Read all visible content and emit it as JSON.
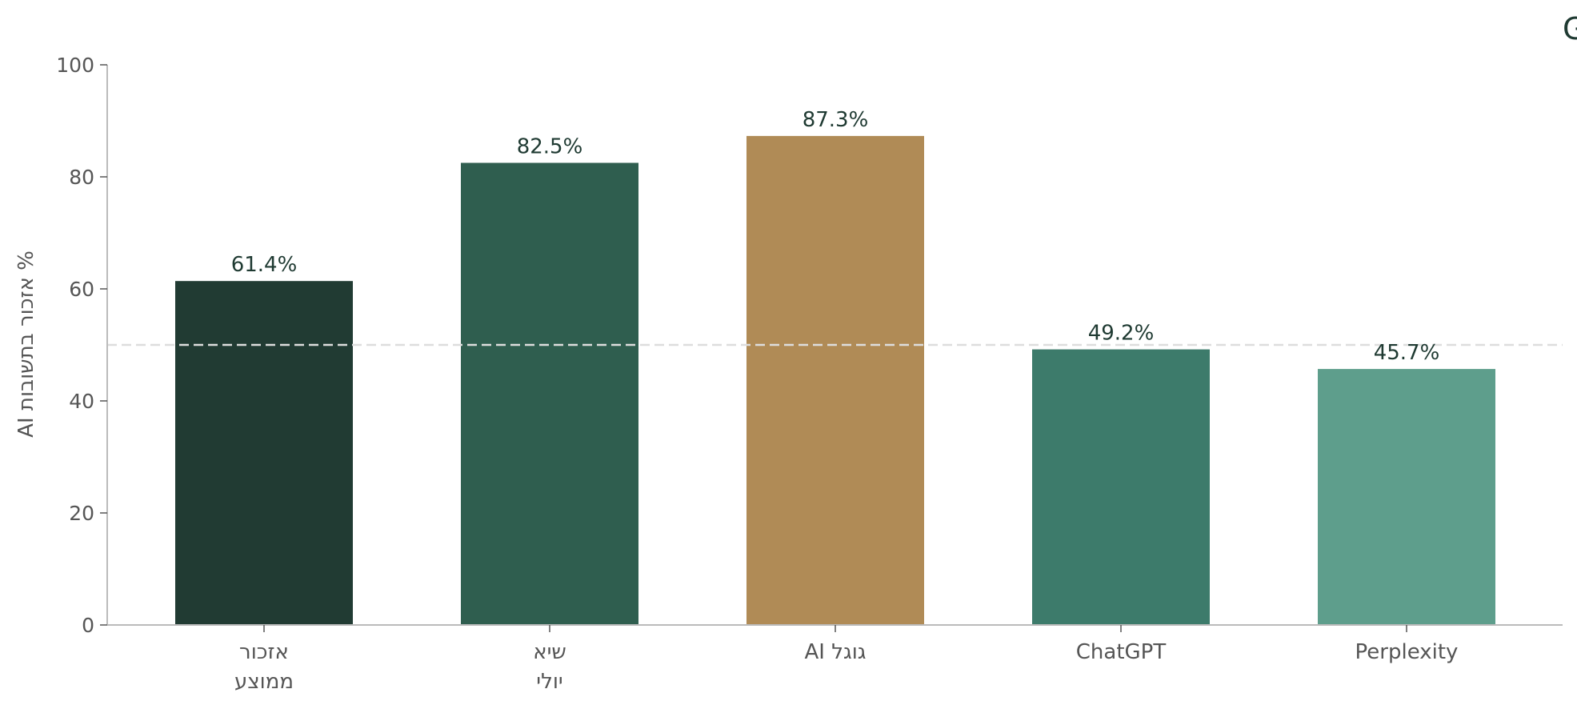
{
  "chart_data": {
    "type": "bar",
    "title": "AI נוכחות המותג במנועי · GEO",
    "xlabel": "",
    "ylabel": "% אזכור בתשובות AI",
    "ylim": [
      0,
      100
    ],
    "yticks": [
      0,
      20,
      40,
      60,
      80,
      100
    ],
    "categories": [
      [
        "אזכור",
        "ממוצע"
      ],
      [
        "שיא",
        "יולי"
      ],
      [
        "גוגל AI"
      ],
      [
        "ChatGPT"
      ],
      [
        "Perplexity"
      ]
    ],
    "values": [
      61.4,
      82.5,
      87.3,
      49.2,
      45.7
    ],
    "value_labels": [
      "61.4%",
      "82.5%",
      "87.3%",
      "49.2%",
      "45.7%"
    ],
    "bar_colors": [
      "#213b33",
      "#2f5e4f",
      "#b08b56",
      "#3d7b6b",
      "#5e9e8c"
    ],
    "reference_line": {
      "value": 50,
      "style": "dashed",
      "color": "#dddddd"
    },
    "grid": false,
    "legend": "none"
  }
}
